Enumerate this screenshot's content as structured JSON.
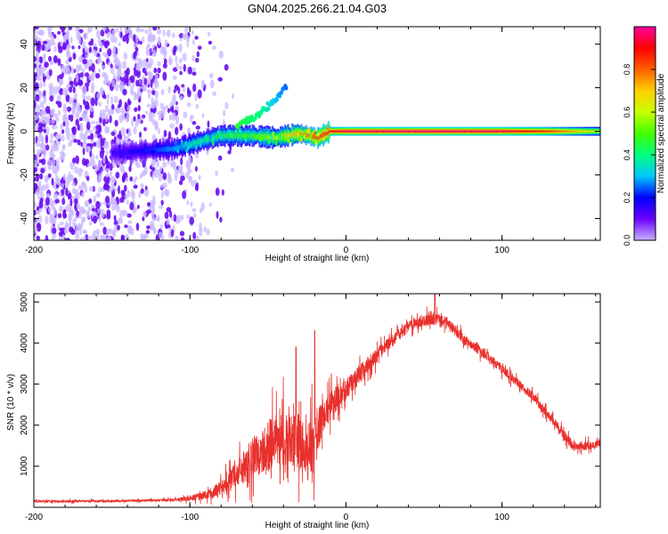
{
  "title": "GN04.2025.266.21.04.G03",
  "chart_data": [
    {
      "type": "heatmap",
      "title": "GN04.2025.266.21.04.G03",
      "xlabel": "Height of straight line (km)",
      "ylabel": "Frequency (Hz)",
      "xlim": [
        -200,
        163
      ],
      "ylim": [
        -50,
        48
      ],
      "xticks": [
        -200,
        -100,
        0,
        100
      ],
      "yticks": [
        -40,
        -20,
        0,
        20,
        40
      ],
      "xtick_labels": [
        "-200",
        "-100",
        "0",
        "100"
      ],
      "ytick_labels": [
        "-40",
        "-20",
        "0",
        "20",
        "40"
      ],
      "colorbar": {
        "label": "Normalized spectral amplitude",
        "range": [
          0,
          1
        ],
        "ticks": [
          0.0,
          0.2,
          0.4,
          0.6,
          0.8
        ],
        "tick_labels": [
          "0.0",
          "0.2",
          "0.4",
          "0.6",
          "0.8"
        ],
        "colormap": [
          "#c8b4ff",
          "#6a00ff",
          "#0000ff",
          "#00c8ff",
          "#00ff80",
          "#40ff00",
          "#c8ff00",
          "#ffd000",
          "#ff6000",
          "#ff0000",
          "#ff00a0"
        ]
      },
      "signal_track": [
        {
          "x": -150,
          "f": -10,
          "a": 0.15
        },
        {
          "x": -130,
          "f": -9,
          "a": 0.2
        },
        {
          "x": -110,
          "f": -8,
          "a": 0.3
        },
        {
          "x": -95,
          "f": -5,
          "a": 0.4
        },
        {
          "x": -80,
          "f": -2,
          "a": 0.45
        },
        {
          "x": -60,
          "f": -2,
          "a": 0.5
        },
        {
          "x": -45,
          "f": -3,
          "a": 0.6
        },
        {
          "x": -30,
          "f": -1,
          "a": 0.75
        },
        {
          "x": -18,
          "f": -3,
          "a": 0.85
        },
        {
          "x": -10,
          "f": 0,
          "a": 0.9
        },
        {
          "x": 0,
          "f": 0,
          "a": 0.95
        },
        {
          "x": 50,
          "f": 0,
          "a": 0.97
        },
        {
          "x": 100,
          "f": 0,
          "a": 0.95
        },
        {
          "x": 130,
          "f": 0,
          "a": 0.85
        },
        {
          "x": 163,
          "f": 0,
          "a": 0.6
        }
      ],
      "upper_branch": [
        {
          "x": -70,
          "f": 3,
          "a": 0.45
        },
        {
          "x": -55,
          "f": 8,
          "a": 0.4
        },
        {
          "x": -45,
          "f": 15,
          "a": 0.3
        },
        {
          "x": -38,
          "f": 20,
          "a": 0.25
        }
      ],
      "noise_region": {
        "x_range": [
          -200,
          -80
        ],
        "f_range": [
          -50,
          48
        ],
        "a_max": 0.15
      }
    },
    {
      "type": "line",
      "xlabel": "Height of straight line (km)",
      "ylabel": "SNR (10 * v/v)",
      "xlim": [
        -200,
        163
      ],
      "ylim": [
        0,
        5200
      ],
      "xticks": [
        -200,
        -100,
        0,
        100
      ],
      "yticks": [
        1000,
        2000,
        3000,
        4000,
        5000
      ],
      "xtick_labels": [
        "-200",
        "-100",
        "0",
        "100"
      ],
      "ytick_labels": [
        "1000",
        "2000",
        "3000",
        "4000",
        "5000"
      ],
      "color": "#e8302c",
      "series": [
        {
          "name": "SNR",
          "envelope": [
            {
              "x": -200,
              "y": 150,
              "noise": 60
            },
            {
              "x": -150,
              "y": 150,
              "noise": 60
            },
            {
              "x": -110,
              "y": 180,
              "noise": 70
            },
            {
              "x": -100,
              "y": 220,
              "noise": 150
            },
            {
              "x": -85,
              "y": 350,
              "noise": 300
            },
            {
              "x": -70,
              "y": 800,
              "noise": 700
            },
            {
              "x": -60,
              "y": 1200,
              "noise": 1100
            },
            {
              "x": -50,
              "y": 1500,
              "noise": 1400
            },
            {
              "x": -40,
              "y": 1700,
              "noise": 1500
            },
            {
              "x": -30,
              "y": 1600,
              "noise": 1500
            },
            {
              "x": -22,
              "y": 1300,
              "noise": 1800
            },
            {
              "x": -15,
              "y": 2200,
              "noise": 900
            },
            {
              "x": -5,
              "y": 2700,
              "noise": 700
            },
            {
              "x": 10,
              "y": 3300,
              "noise": 500
            },
            {
              "x": 25,
              "y": 3900,
              "noise": 350
            },
            {
              "x": 40,
              "y": 4400,
              "noise": 300
            },
            {
              "x": 55,
              "y": 4600,
              "noise": 350
            },
            {
              "x": 65,
              "y": 4500,
              "noise": 300
            },
            {
              "x": 75,
              "y": 4100,
              "noise": 300
            },
            {
              "x": 90,
              "y": 3700,
              "noise": 250
            },
            {
              "x": 105,
              "y": 3200,
              "noise": 250
            },
            {
              "x": 120,
              "y": 2700,
              "noise": 250
            },
            {
              "x": 135,
              "y": 2000,
              "noise": 250
            },
            {
              "x": 145,
              "y": 1500,
              "noise": 250
            },
            {
              "x": 155,
              "y": 1500,
              "noise": 250
            },
            {
              "x": 163,
              "y": 1550,
              "noise": 200
            }
          ],
          "peaks": [
            {
              "x": -32,
              "y": 3900
            },
            {
              "x": -20,
              "y": 4300
            },
            {
              "x": 57,
              "y": 5200
            }
          ]
        }
      ]
    }
  ]
}
